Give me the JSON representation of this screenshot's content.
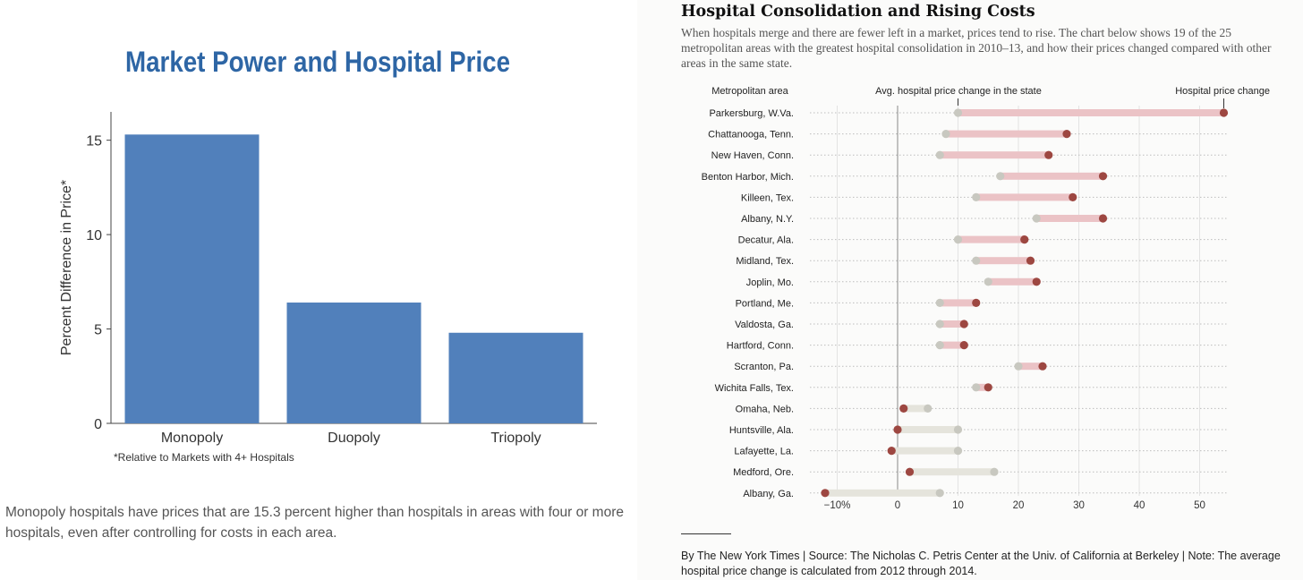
{
  "left": {
    "caption": "Monopoly hospitals have prices that are 15.3 percent higher than hospitals in areas with four or more hospitals, even after controlling for costs in each area."
  },
  "right": {
    "headline": "Hospital Consolidation and Rising Costs",
    "dek": "When hospitals merge and there are fewer left in a market, prices tend to rise. The chart below shows 19 of the 25 metropolitan areas with the greatest hospital consolidation in 2010–13, and how their prices changed compared with other areas in the same state.",
    "footer": "By The New York Times | Source: The Nicholas C. Petris Center at the Univ. of California at Berkeley | Note: The average hospital price change is calculated from 2012 through 2014."
  },
  "colors": {
    "bar": "#5180bb",
    "title": "#2e66a5",
    "state_dot": "#c8c8c0",
    "hospital_dot": "#9d4741",
    "increase_bar": "#ebc3c6",
    "decrease_bar": "#e5e4dc"
  },
  "chart_data": [
    {
      "type": "bar",
      "title": "Market Power and Hospital Price",
      "ylabel": "Percent Difference in Price*",
      "xlabel": "",
      "categories": [
        "Monopoly",
        "Duopoly",
        "Triopoly"
      ],
      "values": [
        15.3,
        6.4,
        4.8
      ],
      "ylim": [
        0,
        16.5
      ],
      "yticks": [
        0,
        5,
        10,
        15
      ],
      "footnote": "*Relative to Markets with 4+ Hospitals",
      "grid": false
    },
    {
      "type": "dot-range",
      "column_headers": {
        "area": "Metropolitan area",
        "state": "Avg. hospital price change in the state",
        "hospital": "Hospital price change"
      },
      "xlim": [
        -12,
        55
      ],
      "xticks": [
        -10,
        0,
        10,
        20,
        30,
        40,
        50
      ],
      "xtick_labels": [
        "−10%",
        "0",
        "10",
        "20",
        "30",
        "40",
        "50"
      ],
      "grid": true,
      "rows": [
        {
          "area": "Parkersburg, W.Va.",
          "state": 10,
          "hospital": 54
        },
        {
          "area": "Chattanooga, Tenn.",
          "state": 8,
          "hospital": 28
        },
        {
          "area": "New Haven, Conn.",
          "state": 7,
          "hospital": 25
        },
        {
          "area": "Benton Harbor, Mich.",
          "state": 17,
          "hospital": 34
        },
        {
          "area": "Killeen, Tex.",
          "state": 13,
          "hospital": 29
        },
        {
          "area": "Albany, N.Y.",
          "state": 23,
          "hospital": 34
        },
        {
          "area": "Decatur, Ala.",
          "state": 10,
          "hospital": 21
        },
        {
          "area": "Midland, Tex.",
          "state": 13,
          "hospital": 22
        },
        {
          "area": "Joplin, Mo.",
          "state": 15,
          "hospital": 23
        },
        {
          "area": "Portland, Me.",
          "state": 7,
          "hospital": 13
        },
        {
          "area": "Valdosta, Ga.",
          "state": 7,
          "hospital": 11
        },
        {
          "area": "Hartford, Conn.",
          "state": 7,
          "hospital": 11
        },
        {
          "area": "Scranton, Pa.",
          "state": 20,
          "hospital": 24
        },
        {
          "area": "Wichita Falls, Tex.",
          "state": 13,
          "hospital": 15
        },
        {
          "area": "Omaha, Neb.",
          "state": 5,
          "hospital": 1
        },
        {
          "area": "Huntsville, Ala.",
          "state": 10,
          "hospital": 0
        },
        {
          "area": "Lafayette, La.",
          "state": 10,
          "hospital": -1
        },
        {
          "area": "Medford, Ore.",
          "state": 16,
          "hospital": 2
        },
        {
          "area": "Albany, Ga.",
          "state": 7,
          "hospital": -12
        }
      ]
    }
  ]
}
